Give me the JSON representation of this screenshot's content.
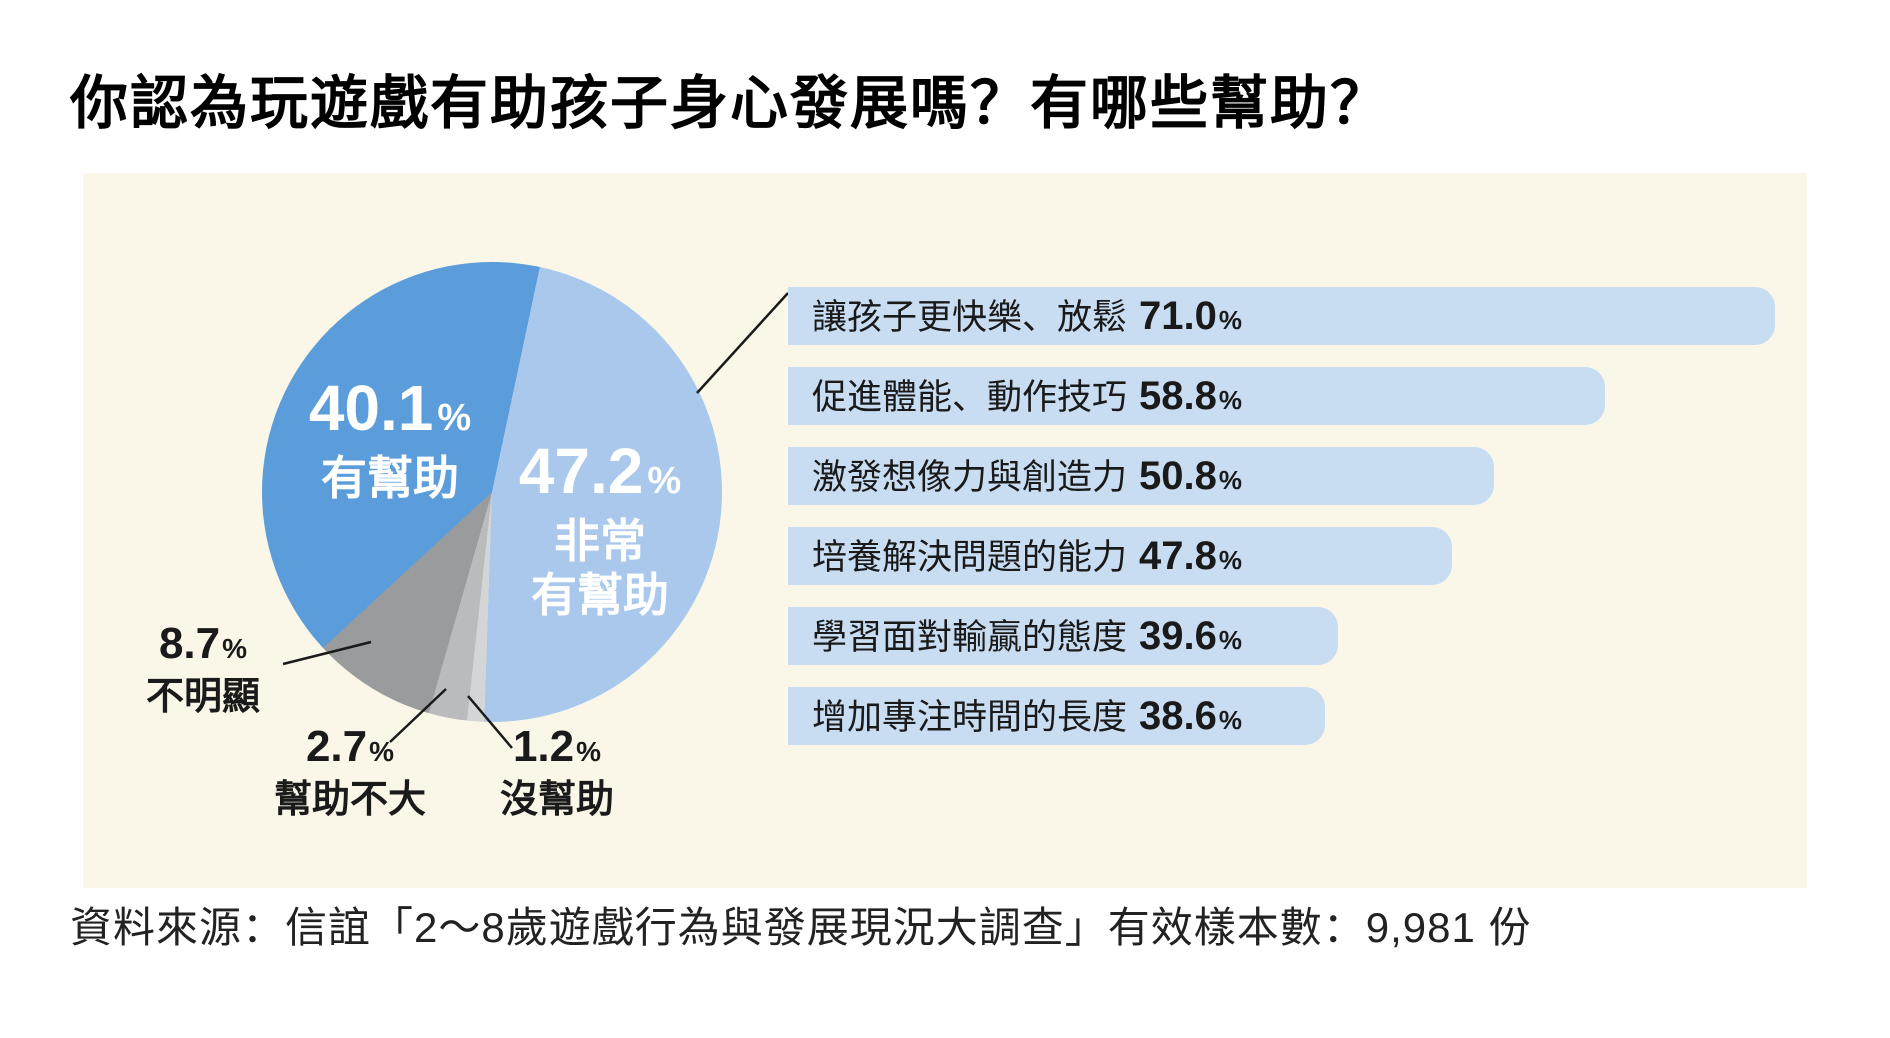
{
  "page": {
    "title": "你認為玩遊戲有助孩子身心發展嗎？有哪些幫助？",
    "source": "資料來源：信誼「2～8歲遊戲行為與發展現況大調查」有效樣本數：9,981 份"
  },
  "colors": {
    "page_bg": "#ffffff",
    "panel_bg": "#faf7e8",
    "bar_fill": "#c8dcf2",
    "text_dark": "#1a1a1a",
    "text_light": "#ffffff",
    "callout_line": "#1a1a1a"
  },
  "chart_data": [
    {
      "type": "pie",
      "unit": "%",
      "rotation_deg": 12,
      "note": "slices listed in clockwise render order starting 12deg right of 12 o'clock",
      "slices": [
        {
          "label": "非常有幫助",
          "label_lines": [
            "非常",
            "有幫助"
          ],
          "value": 47.2,
          "color": "#a9c8ec",
          "text_color": "#ffffff"
        },
        {
          "label": "沒幫助",
          "value": 1.2,
          "color": "#d3d5d6",
          "text_color": "#1a1a1a"
        },
        {
          "label": "幫助不大",
          "value": 2.7,
          "color": "#b9bbbc",
          "text_color": "#1a1a1a"
        },
        {
          "label": "不明顯",
          "value": 8.7,
          "color": "#9a9b9c",
          "text_color": "#1a1a1a"
        },
        {
          "label": "有幫助",
          "value": 40.1,
          "color": "#5b9dda",
          "text_color": "#ffffff"
        }
      ]
    },
    {
      "type": "bar",
      "orientation": "horizontal",
      "unit": "%",
      "categories": [
        "讓孩子更快樂、放鬆",
        "促進體能、動作技巧",
        "激發想像力與創造力",
        "培養解決問題的能力",
        "學習面對輸贏的態度",
        "增加專注時間的長度"
      ],
      "values": [
        71.0,
        58.8,
        50.8,
        47.8,
        39.6,
        38.6
      ],
      "xlim": [
        0,
        72
      ],
      "grid": false,
      "legend": "none"
    }
  ]
}
